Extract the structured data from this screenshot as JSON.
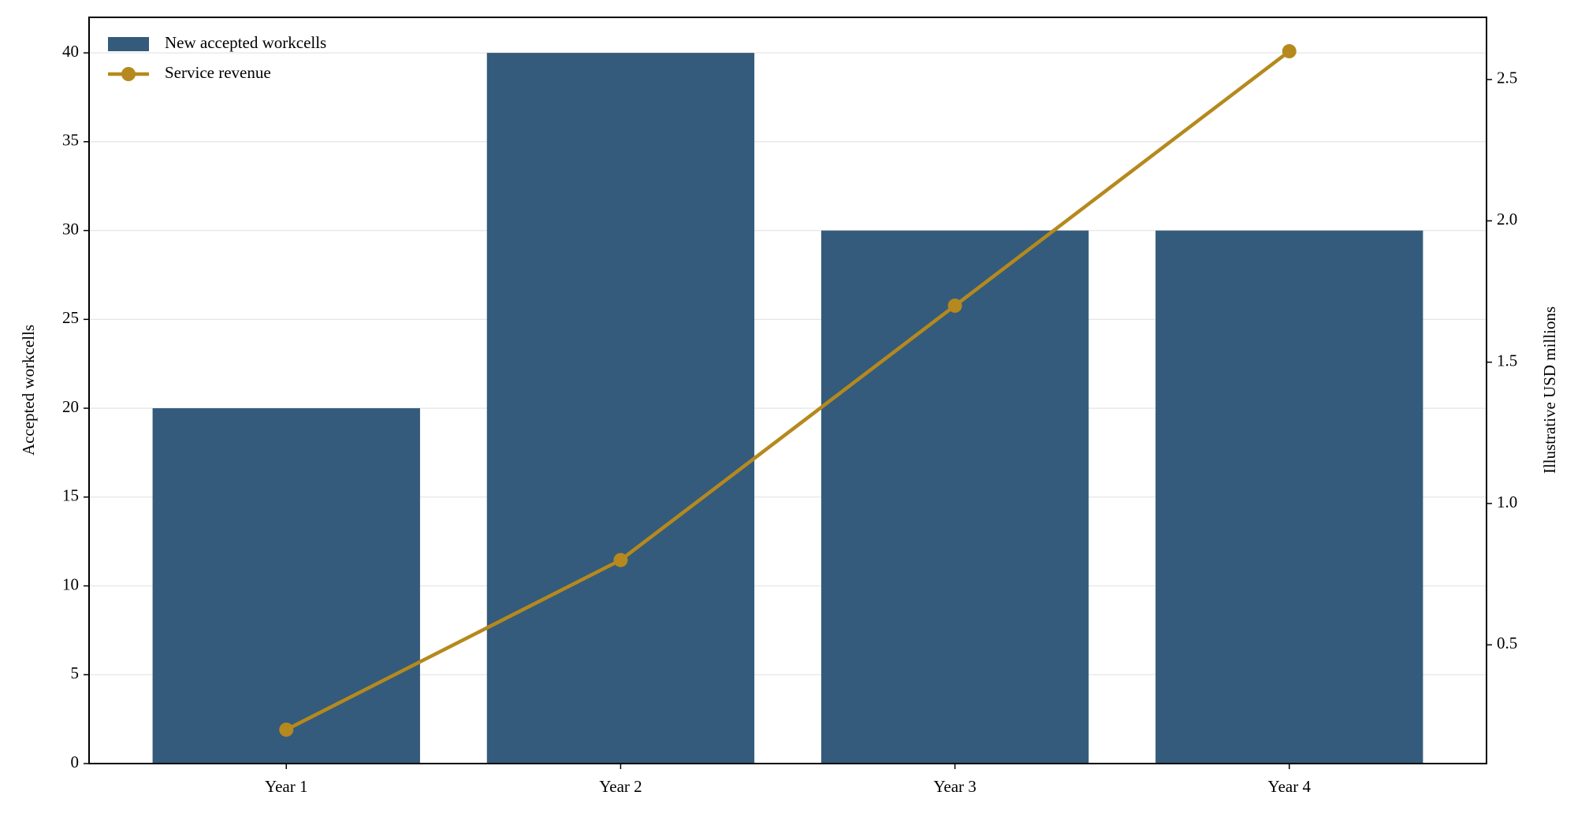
{
  "chart_data": {
    "type": "bar_line",
    "categories": [
      "Year 1",
      "Year 2",
      "Year 3",
      "Year 4"
    ],
    "series": [
      {
        "name": "New accepted workcells",
        "type": "bar",
        "color": "#345b7b",
        "values": [
          20,
          40,
          30,
          30
        ]
      },
      {
        "name": "Service revenue",
        "type": "line",
        "color": "#b5891d",
        "axis": "y2",
        "values": [
          0.2,
          0.8,
          1.7,
          2.6
        ]
      }
    ],
    "ylabel": "Accepted workcells",
    "y2label": "Illustrative USD millions",
    "ylim": [
      0,
      42
    ],
    "yticks": [
      0,
      5,
      10,
      15,
      20,
      25,
      30,
      35,
      40
    ],
    "y2lim": [
      0.08,
      2.72
    ],
    "y2ticks": [
      0.5,
      {
        "value": 1,
        "label": "1.0"
      },
      1.5,
      {
        "value": 2,
        "label": "2.0"
      },
      2.5
    ],
    "grid": true,
    "legend": "upper left"
  }
}
